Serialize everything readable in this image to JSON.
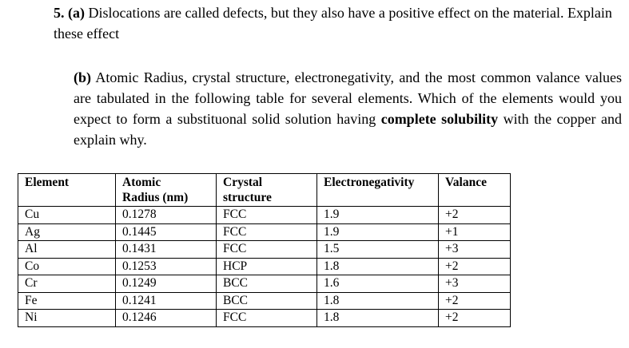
{
  "question_a": {
    "number": "5.",
    "part": "(a)",
    "text": "Dislocations are called defects, but they also have a positive effect on the material. Explain these effect"
  },
  "question_b": {
    "part": "(b)",
    "text_before": "Atomic Radius, crystal structure, electronegativity, and the most common valance values are tabulated in the following table for several elements. Which of the elements would you expect to form a substituonal solid solution having ",
    "emphasis": "complete solubility",
    "text_after": " with the copper and explain why."
  },
  "table": {
    "headers": {
      "element": "Element",
      "radius_line1": "Atomic",
      "radius_line2": "Radius (nm)",
      "structure_line1": "Crystal",
      "structure_line2": "structure",
      "electronegativity": "Electronegativity",
      "valance": "Valance"
    },
    "rows": [
      {
        "element": "Cu",
        "radius": "0.1278",
        "structure": "FCC",
        "electronegativity": "1.9",
        "valance": "+2"
      },
      {
        "element": "Ag",
        "radius": "0.1445",
        "structure": "FCC",
        "electronegativity": "1.9",
        "valance": "+1"
      },
      {
        "element": "Al",
        "radius": "0.1431",
        "structure": "FCC",
        "electronegativity": "1.5",
        "valance": "+3"
      },
      {
        "element": "Co",
        "radius": "0.1253",
        "structure": "HCP",
        "electronegativity": "1.8",
        "valance": "+2"
      },
      {
        "element": "Cr",
        "radius": "0.1249",
        "structure": "BCC",
        "electronegativity": "1.6",
        "valance": "+3"
      },
      {
        "element": "Fe",
        "radius": "0.1241",
        "structure": "BCC",
        "electronegativity": "1.8",
        "valance": "+2"
      },
      {
        "element": "Ni",
        "radius": "0.1246",
        "structure": "FCC",
        "electronegativity": "1.8",
        "valance": "+2"
      }
    ]
  }
}
